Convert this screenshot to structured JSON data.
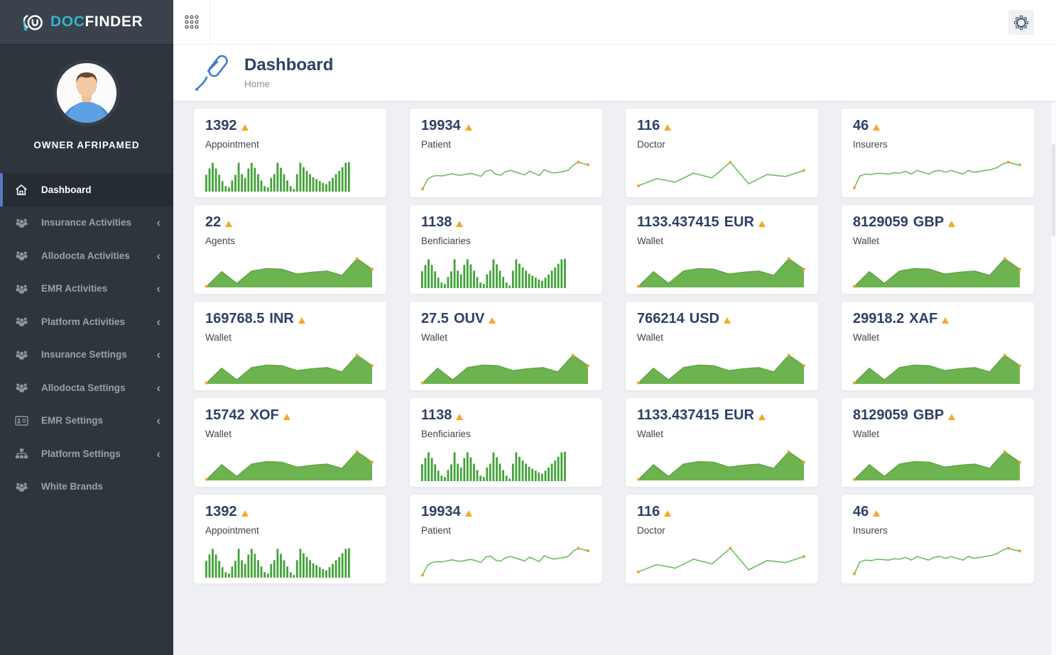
{
  "app": {
    "brand_doc": "DOC",
    "brand_finder": "FINDER",
    "owner": "OWNER AFRIPAMED"
  },
  "header": {
    "title": "Dashboard",
    "breadcrumb": "Home"
  },
  "sidebar": {
    "chevron_glyph": "‹",
    "items": [
      {
        "label": "Dashboard",
        "icon": "home-icon",
        "active": true,
        "chevron": false
      },
      {
        "label": "Insurance Activities",
        "icon": "users-icon",
        "active": false,
        "chevron": true
      },
      {
        "label": "Allodocta Activities",
        "icon": "users-icon",
        "active": false,
        "chevron": true
      },
      {
        "label": "EMR Activities",
        "icon": "users-icon",
        "active": false,
        "chevron": true
      },
      {
        "label": "Platform Activities",
        "icon": "users-icon",
        "active": false,
        "chevron": true
      },
      {
        "label": "Insurance Settings",
        "icon": "users-icon",
        "active": false,
        "chevron": true
      },
      {
        "label": "Allodocta Settings",
        "icon": "users-icon",
        "active": false,
        "chevron": true
      },
      {
        "label": "EMR Settings",
        "icon": "id-card-icon",
        "active": false,
        "chevron": true
      },
      {
        "label": "Platform Settings",
        "icon": "sitemap-icon",
        "active": false,
        "chevron": true
      },
      {
        "label": "White Brands",
        "icon": "users-icon",
        "active": false,
        "chevron": false
      }
    ]
  },
  "colors": {
    "navy": "#2d3f66",
    "trend_orange": "#f7a72a",
    "marker_orange": "#f59d20",
    "bar_green": "#42a238",
    "line_green": "#6abf5e",
    "area_green": "#6db350",
    "area_stroke": "#60a344",
    "teal": "#33b6c9",
    "active_blue": "#5379c5",
    "sidebar_bg": "#2e353d",
    "topbar_dark": "#3a424b",
    "content_bg": "#eef0f4"
  },
  "sparklines": {
    "bars": {
      "type": "bar",
      "values": [
        50,
        70,
        88,
        70,
        50,
        30,
        14,
        10,
        32,
        50,
        88,
        52,
        40,
        70,
        88,
        72,
        52,
        32,
        14,
        10,
        40,
        52,
        88,
        72,
        52,
        32,
        14,
        5,
        52,
        88,
        74,
        62,
        52,
        42,
        36,
        30,
        24,
        20,
        30,
        40,
        52,
        62,
        74,
        88,
        90
      ]
    },
    "patient": {
      "type": "line",
      "values": [
        4,
        30,
        38,
        40,
        39,
        42,
        45,
        42,
        41,
        44,
        46,
        42,
        38,
        52,
        55,
        44,
        41,
        50,
        54,
        50,
        46,
        42,
        52,
        46,
        40,
        56,
        50,
        47,
        49,
        51,
        55,
        68,
        76,
        72,
        69
      ]
    },
    "doctor": {
      "type": "line",
      "values": [
        14,
        36,
        25,
        52,
        38,
        85,
        20,
        48,
        42,
        60
      ]
    },
    "insurers": {
      "type": "line",
      "values": [
        6,
        32,
        36,
        35,
        38,
        37,
        36,
        39,
        38,
        42,
        36,
        44,
        40,
        36,
        42,
        44,
        40,
        44,
        40,
        36,
        44,
        40,
        42,
        44,
        46,
        50,
        58,
        62,
        58,
        56
      ]
    },
    "area": {
      "type": "area",
      "values": [
        2,
        50,
        12,
        52,
        60,
        58,
        42,
        48,
        52,
        38,
        92,
        58
      ]
    }
  },
  "cards": [
    {
      "value": "1392",
      "currency": "",
      "label": "Appointment",
      "spark": "bars"
    },
    {
      "value": "19934",
      "currency": "",
      "label": "Patient",
      "spark": "patient"
    },
    {
      "value": "116",
      "currency": "",
      "label": "Doctor",
      "spark": "doctor"
    },
    {
      "value": "46",
      "currency": "",
      "label": "Insurers",
      "spark": "insurers"
    },
    {
      "value": "22",
      "currency": "",
      "label": "Agents",
      "spark": "area"
    },
    {
      "value": "1138",
      "currency": "",
      "label": "Benficiaries",
      "spark": "bars"
    },
    {
      "value": "1133.437415",
      "currency": "EUR",
      "label": "Wallet",
      "spark": "area"
    },
    {
      "value": "8129059",
      "currency": "GBP",
      "label": "Wallet",
      "spark": "area"
    },
    {
      "value": "169768.5",
      "currency": "INR",
      "label": "Wallet",
      "spark": "area"
    },
    {
      "value": "27.5",
      "currency": "OUV",
      "label": "Wallet",
      "spark": "area"
    },
    {
      "value": "766214",
      "currency": "USD",
      "label": "Wallet",
      "spark": "area"
    },
    {
      "value": "29918.2",
      "currency": "XAF",
      "label": "Wallet",
      "spark": "area"
    },
    {
      "value": "15742",
      "currency": "XOF",
      "label": "Wallet",
      "spark": "area"
    },
    {
      "value": "1138",
      "currency": "",
      "label": "Benficiaries",
      "spark": "bars"
    },
    {
      "value": "1133.437415",
      "currency": "EUR",
      "label": "Wallet",
      "spark": "area"
    },
    {
      "value": "8129059",
      "currency": "GBP",
      "label": "Wallet",
      "spark": "area"
    },
    {
      "value": "1392",
      "currency": "",
      "label": "Appointment",
      "spark": "bars"
    },
    {
      "value": "19934",
      "currency": "",
      "label": "Patient",
      "spark": "patient"
    },
    {
      "value": "116",
      "currency": "",
      "label": "Doctor",
      "spark": "doctor"
    },
    {
      "value": "46",
      "currency": "",
      "label": "Insurers",
      "spark": "insurers"
    }
  ]
}
